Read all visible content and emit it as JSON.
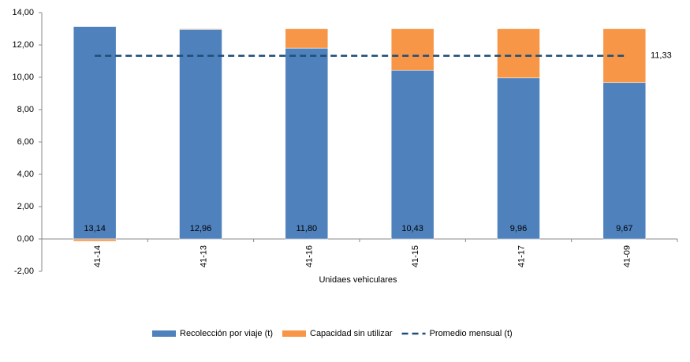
{
  "chart_data": {
    "type": "stacked_bar",
    "categories": [
      "41-14",
      "41-13",
      "41-16",
      "41-15",
      "41-17",
      "41-09"
    ],
    "series": [
      {
        "name": "Recolección por viaje (t)",
        "color": "#4f81bd",
        "values": [
          13.14,
          12.96,
          11.8,
          10.43,
          9.96,
          9.67
        ],
        "value_labels": [
          "13,14",
          "12,96",
          "11,80",
          "10,43",
          "9,96",
          "9,67"
        ]
      },
      {
        "name": "Capacidad sin utilizar",
        "color": "#f79646",
        "values": [
          -0.14,
          0.04,
          1.2,
          2.57,
          3.04,
          3.33
        ]
      }
    ],
    "average": {
      "name": "Promedio mensual (t)",
      "color": "#1f4e79",
      "value": 11.33,
      "label": "11,33"
    },
    "x_label": "Unidaes vehiculares",
    "ylim": [
      -2,
      14
    ],
    "yticks": [
      {
        "value": -2,
        "label": "-2,00"
      },
      {
        "value": 0,
        "label": "0,00"
      },
      {
        "value": 2,
        "label": "2,00"
      },
      {
        "value": 4,
        "label": "4,00"
      },
      {
        "value": 6,
        "label": "6,00"
      },
      {
        "value": 8,
        "label": "8,00"
      },
      {
        "value": 10,
        "label": "10,00"
      },
      {
        "value": 12,
        "label": "12,00"
      },
      {
        "value": 14,
        "label": "14,00"
      }
    ],
    "grid": false
  }
}
